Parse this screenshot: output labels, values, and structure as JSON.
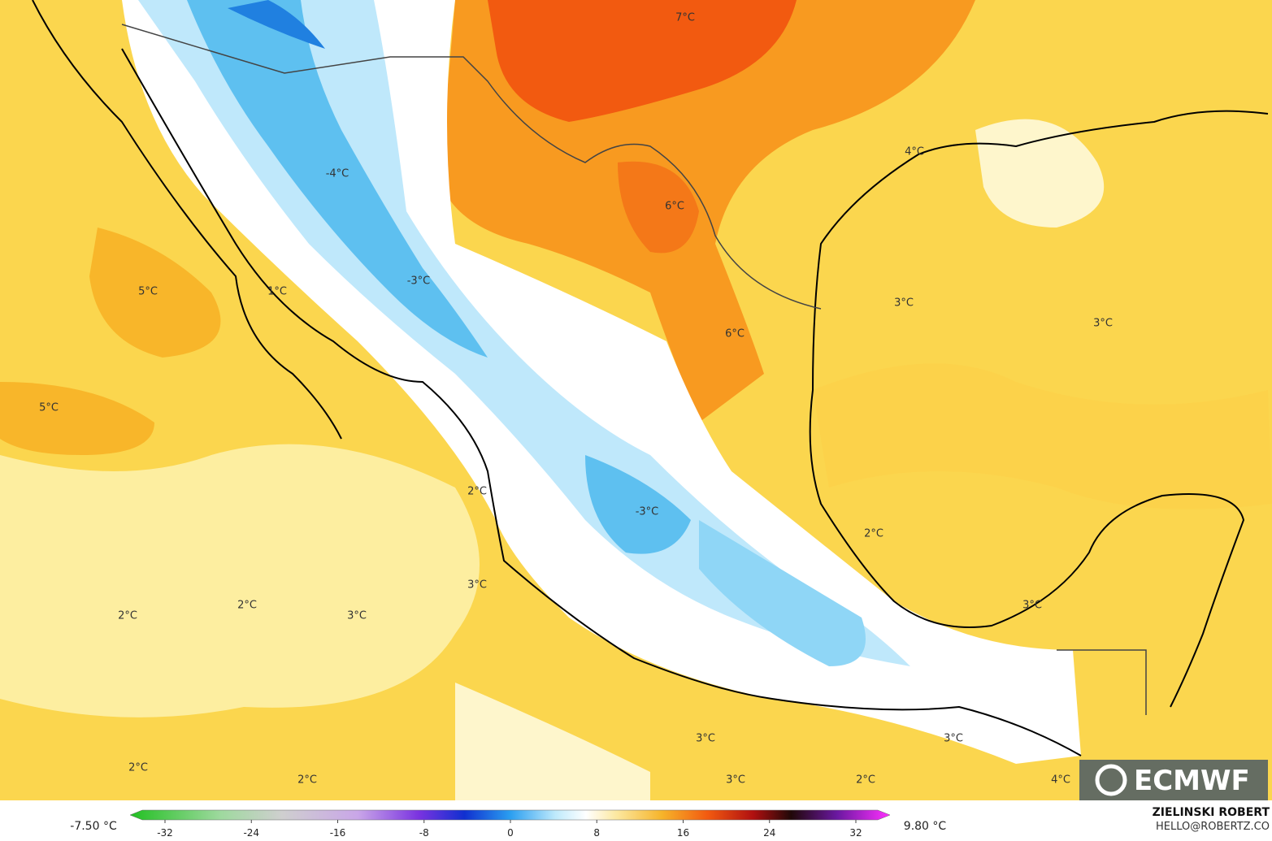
{
  "map": {
    "labels": [
      "7°C",
      "4°C",
      "-4°C",
      "6°C",
      "-3°C",
      "5°C",
      "1°C",
      "3°C",
      "3°C",
      "6°C",
      "5°C",
      "2°C",
      "-3°C",
      "2°C",
      "3°C",
      "2°C",
      "3°C",
      "2°C",
      "3°C",
      "3°C",
      "3°C",
      "2°C",
      "2°C",
      "3°C",
      "2°C",
      "4°C"
    ],
    "logo": "ECMWF"
  },
  "colorbar": {
    "min_label": "-7.50 °C",
    "max_label": "9.80 °C",
    "ticks": [
      -32,
      -24,
      -16,
      -8,
      0,
      8,
      16,
      24,
      32
    ]
  },
  "credit": {
    "name": "ZIELINSKI ROBERT",
    "email": "HELLO@ROBERTZ.CO"
  }
}
